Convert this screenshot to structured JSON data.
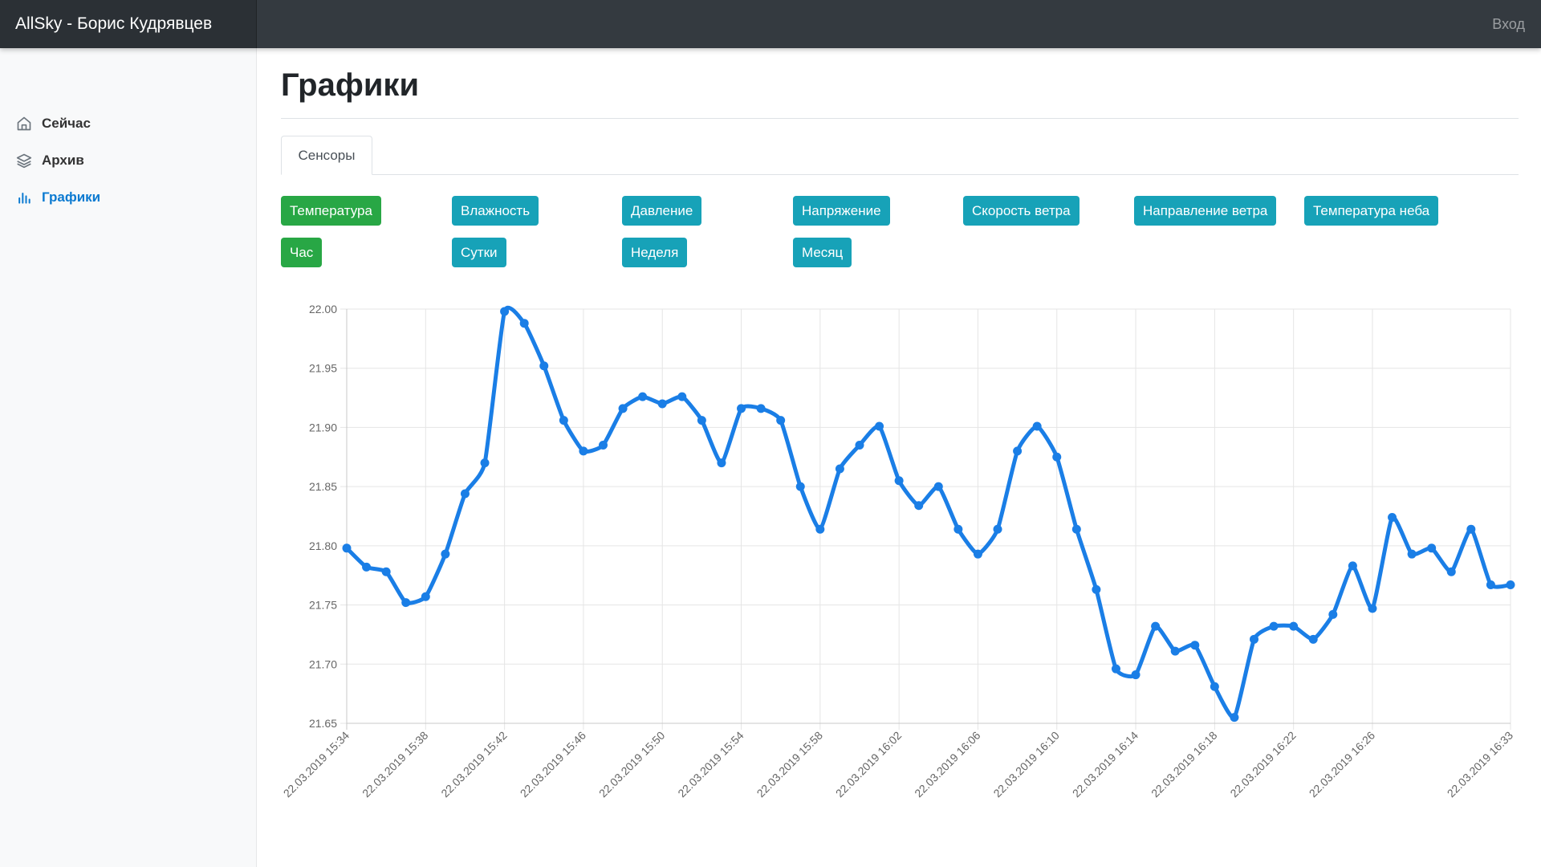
{
  "header": {
    "brand": "AllSky - Борис Кудрявцев",
    "login": "Вход"
  },
  "sidebar": {
    "items": [
      {
        "label": "Сейчас",
        "icon": "home-icon"
      },
      {
        "label": "Архив",
        "icon": "layers-icon"
      },
      {
        "label": "Графики",
        "icon": "bar-chart-icon",
        "active": true
      }
    ]
  },
  "main": {
    "title": "Графики",
    "tabs": [
      {
        "label": "Сенсоры"
      }
    ],
    "sensor_buttons": [
      "Температура",
      "Влажность",
      "Давление",
      "Напряжение",
      "Скорость ветра",
      "Направление ветра",
      "Температура неба"
    ],
    "period_buttons": [
      "Час",
      "Сутки",
      "Неделя",
      "Месяц"
    ]
  },
  "colors": {
    "accent": "#0b7ad1",
    "series": "#1a7ee6",
    "button_info": "#17a2b8",
    "button_success": "#28a745"
  },
  "chart_data": {
    "type": "line",
    "ylim": [
      21.65,
      22.0
    ],
    "y_ticks": [
      "22.00",
      "21.95",
      "21.90",
      "21.85",
      "21.80",
      "21.75",
      "21.70",
      "21.65"
    ],
    "x_tick_labels": [
      "22.03.2019 15:34",
      "22.03.2019 15:38",
      "22.03.2019 15:42",
      "22.03.2019 15:46",
      "22.03.2019 15:50",
      "22.03.2019 15:54",
      "22.03.2019 15:58",
      "22.03.2019 16:02",
      "22.03.2019 16:06",
      "22.03.2019 16:10",
      "22.03.2019 16:14",
      "22.03.2019 16:18",
      "22.03.2019 16:22",
      "22.03.2019 16:26",
      "22.03.2019 16:33"
    ],
    "series": [
      {
        "values": [
          21.798,
          21.782,
          21.778,
          21.752,
          21.757,
          21.793,
          21.844,
          21.87,
          21.998,
          21.988,
          21.952,
          21.906,
          21.88,
          21.885,
          21.916,
          21.926,
          21.92,
          21.926,
          21.906,
          21.87,
          21.916,
          21.916,
          21.906,
          21.85,
          21.814,
          21.865,
          21.885,
          21.901,
          21.855,
          21.834,
          21.85,
          21.814,
          21.793,
          21.814,
          21.88,
          21.901,
          21.875,
          21.814,
          21.763,
          21.696,
          21.691,
          21.732,
          21.711,
          21.716,
          21.681,
          21.655,
          21.721,
          21.732,
          21.732,
          21.721,
          21.742,
          21.783,
          21.747,
          21.824,
          21.793,
          21.798,
          21.778,
          21.814,
          21.767,
          21.767
        ]
      }
    ]
  }
}
